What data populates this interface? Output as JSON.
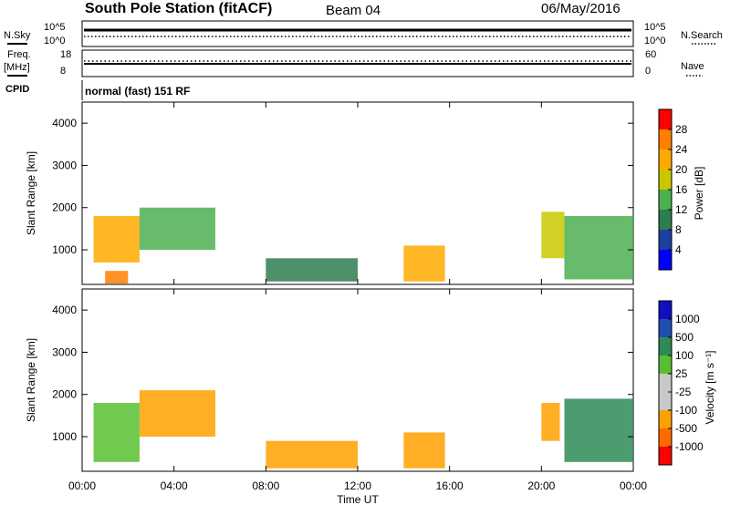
{
  "header": {
    "station": "South Pole Station (fitACF)",
    "beam": "Beam 04",
    "date": "06/May/2016"
  },
  "noise_panel": {
    "left_label": "N.Sky",
    "right_label": "N.Search",
    "left_ticks": [
      "10^5",
      "10^0"
    ],
    "right_ticks": [
      "10^5",
      "10^0"
    ]
  },
  "freq_panel": {
    "left_label_1": "Freq.",
    "left_label_2": "[MHz]",
    "right_label": "Nave",
    "left_ticks": [
      "18",
      "8"
    ],
    "right_ticks": [
      "60",
      "0"
    ]
  },
  "cpid": {
    "label": "CPID",
    "value": "normal (fast) 151 RF"
  },
  "x_axis": {
    "title": "Time UT",
    "ticks": [
      "00:00",
      "04:00",
      "08:00",
      "12:00",
      "16:00",
      "20:00",
      "00:00"
    ]
  },
  "power_colorbar": {
    "title": "Power [dB]",
    "ticks": [
      "28",
      "24",
      "20",
      "16",
      "12",
      "8",
      "4"
    ]
  },
  "velocity_colorbar": {
    "title": "Velocity [m s⁻¹]",
    "ticks": [
      "1000",
      "500",
      "100",
      "25",
      "-25",
      "-100",
      "-500",
      "-1000"
    ]
  },
  "colors": {
    "power_scale": [
      "#0000ff",
      "#1f3fa0",
      "#2e7d4f",
      "#4caf50",
      "#c8c800",
      "#ffaa00",
      "#ff7f00",
      "#ff0000"
    ],
    "velocity_scale": [
      "#ff0000",
      "#ff6a00",
      "#ffa000",
      "#c8c8c8",
      "#c8c8c8",
      "#58c030",
      "#2e8b57",
      "#1f4fb0",
      "#1010c0"
    ]
  },
  "chart_data": [
    {
      "type": "heatmap",
      "panel": "power",
      "title": "South Pole Station (fitACF) Beam 04 06/May/2016",
      "xlabel": "Time UT",
      "ylabel": "Slant Range [km]",
      "xlim": [
        0,
        24
      ],
      "ylim": [
        180,
        4500
      ],
      "y_ticks": [
        1000,
        2000,
        3000,
        4000
      ],
      "colorbar": "Power [dB]",
      "clim": [
        0,
        32
      ],
      "grid": false,
      "patches": [
        {
          "t": [
            0.5,
            2.5
          ],
          "range": [
            700,
            1800
          ],
          "level": 22
        },
        {
          "t": [
            2.5,
            5.8
          ],
          "range": [
            1000,
            2000
          ],
          "level": 14
        },
        {
          "t": [
            1.0,
            2.0
          ],
          "range": [
            200,
            500
          ],
          "level": 26
        },
        {
          "t": [
            8.0,
            12.0
          ],
          "range": [
            250,
            800
          ],
          "level": 10
        },
        {
          "t": [
            14.0,
            15.8
          ],
          "range": [
            250,
            1100
          ],
          "level": 20
        },
        {
          "t": [
            20.0,
            21.0
          ],
          "range": [
            800,
            1900
          ],
          "level": 18
        },
        {
          "t": [
            21.0,
            24.0
          ],
          "range": [
            300,
            1800
          ],
          "level": 14
        }
      ]
    },
    {
      "type": "heatmap",
      "panel": "velocity",
      "xlabel": "Time UT",
      "ylabel": "Slant Range [km]",
      "xlim": [
        0,
        24
      ],
      "ylim": [
        180,
        4500
      ],
      "y_ticks": [
        1000,
        2000,
        3000,
        4000
      ],
      "colorbar": "Velocity [m s⁻¹]",
      "clim": [
        -1000,
        1000
      ],
      "grid": false,
      "patches": [
        {
          "t": [
            0.5,
            2.5
          ],
          "range": [
            400,
            1800
          ],
          "level": 100
        },
        {
          "t": [
            2.5,
            5.8
          ],
          "range": [
            1000,
            2100
          ],
          "level": -100
        },
        {
          "t": [
            8.0,
            12.0
          ],
          "range": [
            250,
            900
          ],
          "level": -100
        },
        {
          "t": [
            14.0,
            15.8
          ],
          "range": [
            250,
            1100
          ],
          "level": -100
        },
        {
          "t": [
            20.0,
            20.8
          ],
          "range": [
            900,
            1800
          ],
          "level": -100
        },
        {
          "t": [
            21.0,
            24.0
          ],
          "range": [
            400,
            1900
          ],
          "level": 500
        }
      ]
    }
  ]
}
